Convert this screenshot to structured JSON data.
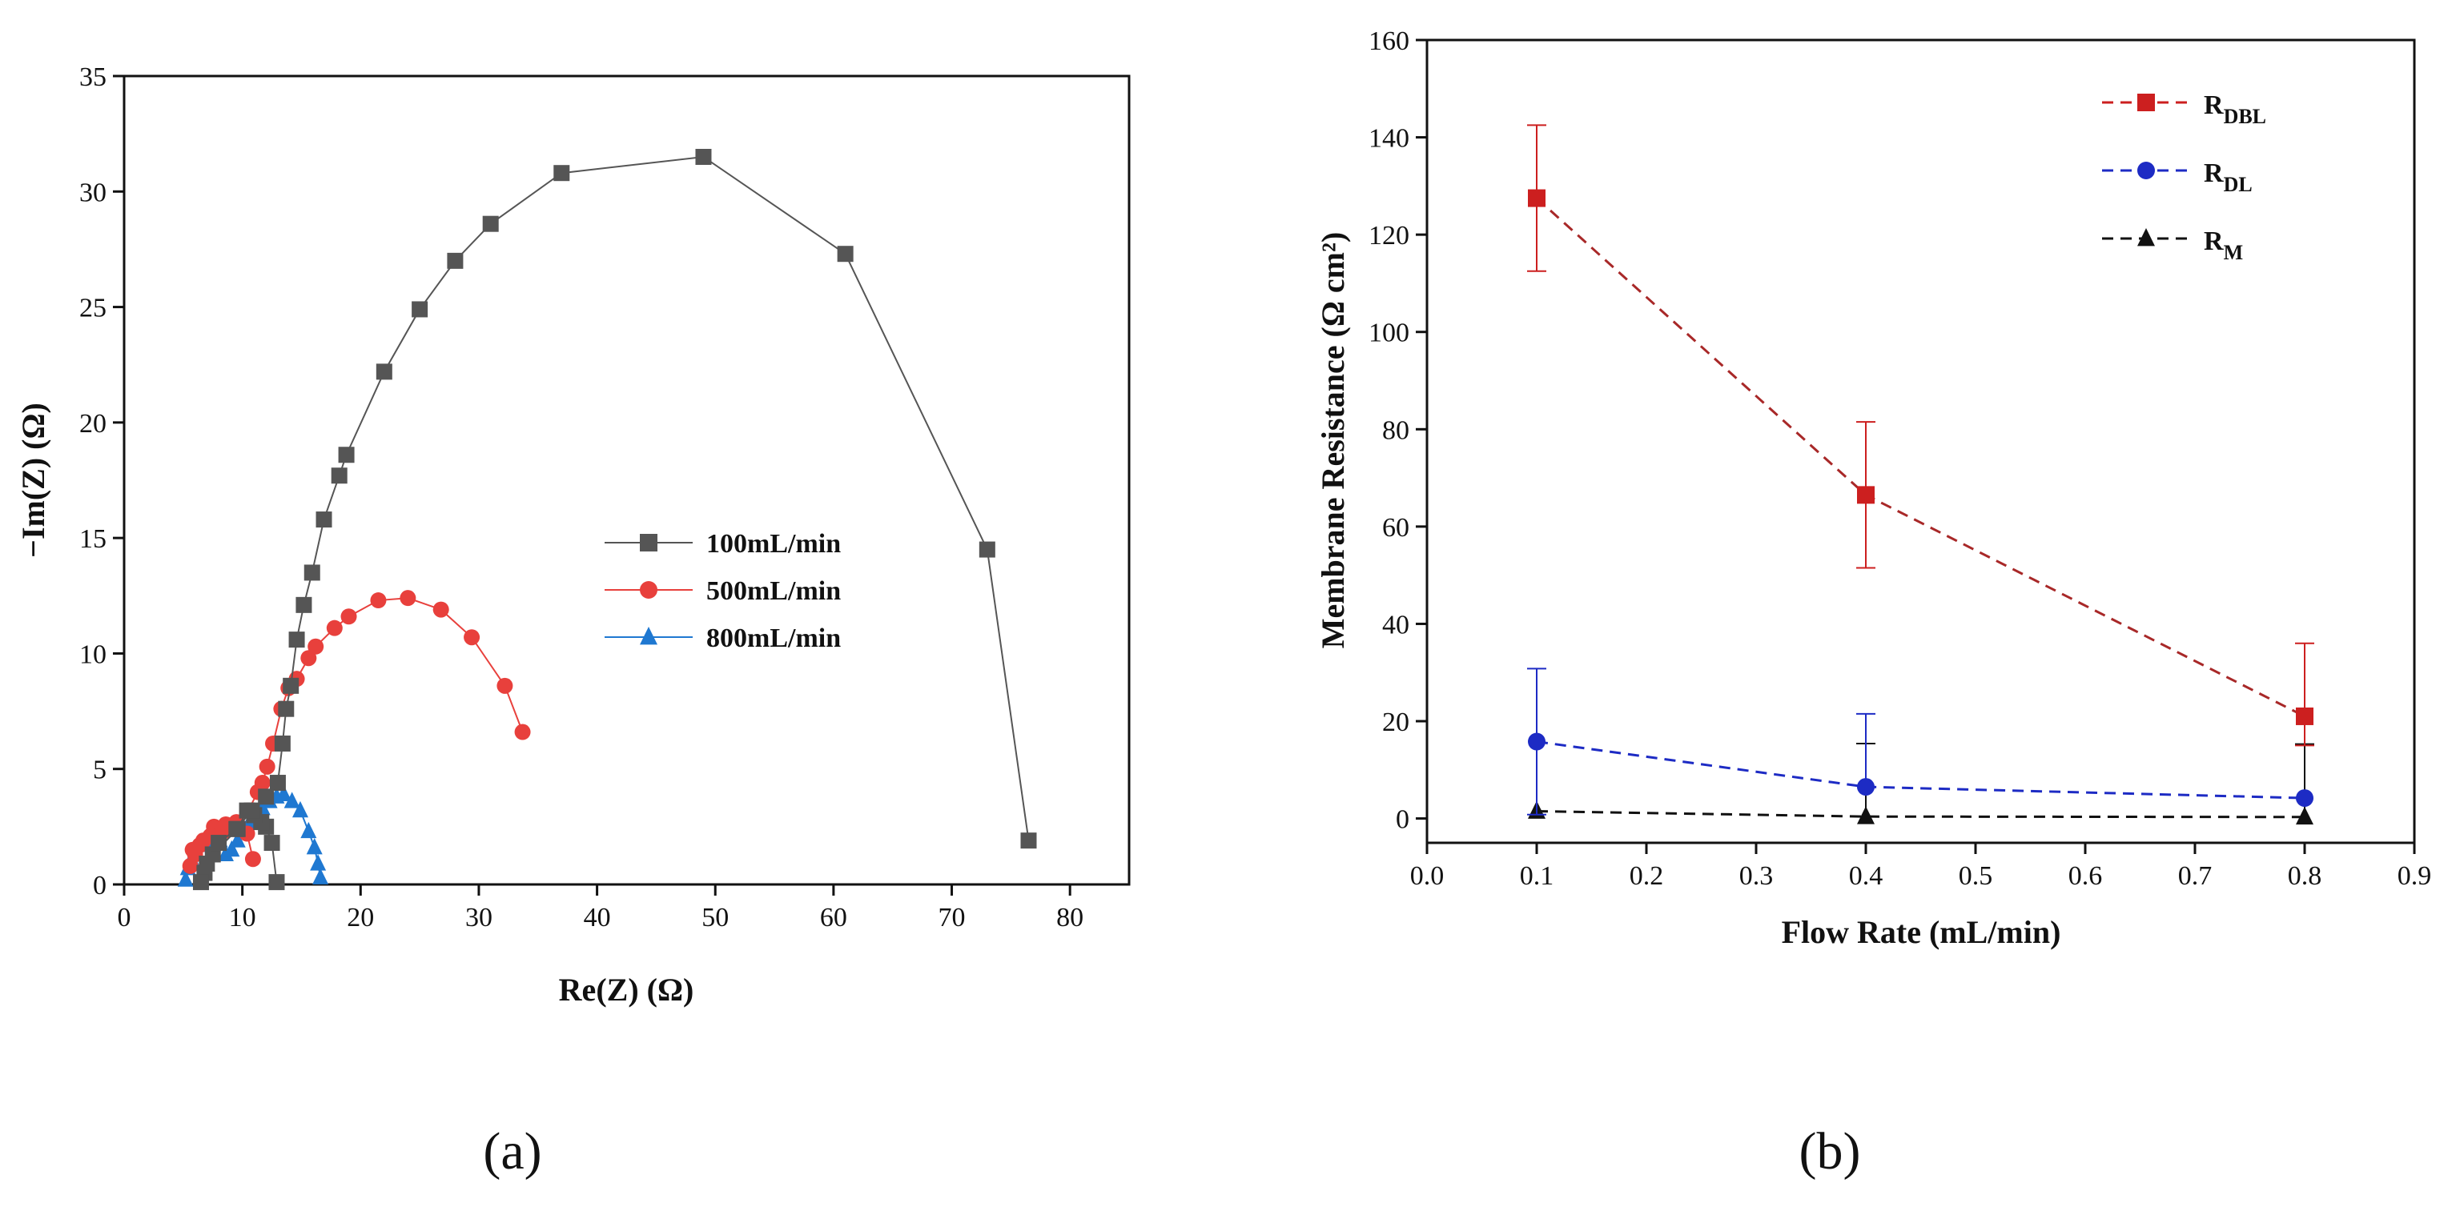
{
  "figure": {
    "panel_a_label": "(a)",
    "panel_b_label": "(b)"
  },
  "chart_data": [
    {
      "type": "scatter",
      "title": "",
      "xlabel": "Re(Z) (Ω)",
      "ylabel": "−Im(Z) (Ω)",
      "xlim": [
        0,
        85
      ],
      "ylim": [
        0,
        35
      ],
      "x_ticks": [
        0,
        10,
        20,
        30,
        40,
        50,
        60,
        70,
        80
      ],
      "y_ticks": [
        0,
        5,
        10,
        15,
        20,
        25,
        30,
        35
      ],
      "legend_position": "center-right",
      "series": [
        {
          "name": "100mL/min",
          "color": "#555555",
          "marker": "square",
          "x": [
            12.9,
            12.5,
            12.0,
            11.6,
            11.0,
            10.4,
            9.6,
            7.5,
            6.8,
            6.5,
            7.0,
            8.0,
            9.5,
            10.8,
            12.0,
            13.0,
            13.4,
            13.7,
            14.1,
            14.6,
            15.2,
            15.9,
            16.9,
            18.2,
            18.8,
            22.0,
            25.0,
            28.0,
            31.0,
            37.0,
            49.0,
            61.0,
            73.0,
            76.5
          ],
          "y": [
            0.1,
            1.8,
            2.5,
            2.7,
            3.0,
            3.2,
            2.4,
            1.3,
            0.5,
            0.1,
            0.9,
            1.8,
            2.4,
            3.2,
            3.8,
            4.4,
            6.1,
            7.6,
            8.6,
            10.6,
            12.1,
            13.5,
            15.8,
            17.7,
            18.6,
            22.2,
            24.9,
            27.0,
            28.6,
            30.8,
            31.5,
            27.3,
            14.5,
            1.9
          ],
          "marker_count": 34
        },
        {
          "name": "500mL/min",
          "color": "#e8403c",
          "marker": "circle",
          "x": [
            10.9,
            10.4,
            9.6,
            8.6,
            7.6,
            6.7,
            6.0,
            5.6,
            5.8,
            6.4,
            7.3,
            8.4,
            9.5,
            10.5,
            11.3,
            11.7,
            12.1,
            12.6,
            13.3,
            13.9,
            14.6,
            15.6,
            16.2,
            17.8,
            19.0,
            21.5,
            24.0,
            26.8,
            29.4,
            32.2,
            33.7
          ],
          "y": [
            1.1,
            2.2,
            2.6,
            2.6,
            2.5,
            1.9,
            1.3,
            0.8,
            1.5,
            1.7,
            2.1,
            2.3,
            2.7,
            3.2,
            4.0,
            4.4,
            5.1,
            6.1,
            7.6,
            8.5,
            8.9,
            9.8,
            10.3,
            11.1,
            11.6,
            12.3,
            12.4,
            11.9,
            10.7,
            8.6,
            6.6
          ],
          "marker_count": 31
        },
        {
          "name": "800mL/min",
          "color": "#1f78d1",
          "marker": "triangle",
          "x": [
            5.2,
            5.4,
            5.7,
            6.0,
            6.4,
            6.9,
            7.5,
            8.1,
            8.6,
            9.1,
            9.6,
            10.1,
            10.6,
            11.1,
            11.7,
            12.3,
            12.9,
            13.5,
            14.2,
            14.9,
            15.6,
            16.1,
            16.4,
            16.6
          ],
          "y": [
            0.2,
            0.7,
            1.1,
            1.4,
            1.7,
            1.9,
            2.1,
            1.9,
            1.3,
            1.5,
            1.9,
            2.3,
            2.7,
            3.0,
            3.3,
            3.6,
            3.8,
            3.9,
            3.6,
            3.2,
            2.3,
            1.6,
            0.9,
            0.3
          ],
          "marker_count": 24
        }
      ]
    },
    {
      "type": "line",
      "title": "",
      "xlabel": "Flow Rate (mL/min)",
      "ylabel": "Membrane Resistance (Ω cm²)",
      "xlim": [
        0,
        0.9
      ],
      "ylim": [
        -5,
        160
      ],
      "x_ticks": [
        "0.0",
        "0.1",
        "0.2",
        "0.3",
        "0.4",
        "0.5",
        "0.6",
        "0.7",
        "0.8",
        "0.9"
      ],
      "y_ticks": [
        0,
        20,
        40,
        60,
        80,
        100,
        120,
        140,
        160
      ],
      "x": [
        0.1,
        0.4,
        0.8
      ],
      "legend_position": "top-right",
      "series": [
        {
          "name": "R",
          "subscript": "DBL",
          "color": "#cc1f1f",
          "line_style": "dashed",
          "marker": "square",
          "values": [
            127.5,
            66.5,
            21
          ],
          "error_plus": [
            15,
            15,
            15
          ],
          "error_minus": [
            15,
            15,
            6
          ]
        },
        {
          "name": "R",
          "subscript": "DL",
          "color": "#1d2bc4",
          "line_style": "dashed",
          "marker": "circle",
          "values": [
            15.8,
            6.5,
            4.2
          ],
          "error_plus": [
            15,
            15,
            0
          ],
          "error_minus": [
            15,
            0,
            0
          ]
        },
        {
          "name": "R",
          "subscript": "M",
          "color": "#111111",
          "line_style": "dashed",
          "marker": "triangle",
          "values": [
            1.5,
            0.4,
            0.3
          ],
          "error_plus": [
            0,
            15,
            15
          ],
          "error_minus": [
            0,
            0,
            0
          ]
        }
      ]
    }
  ]
}
